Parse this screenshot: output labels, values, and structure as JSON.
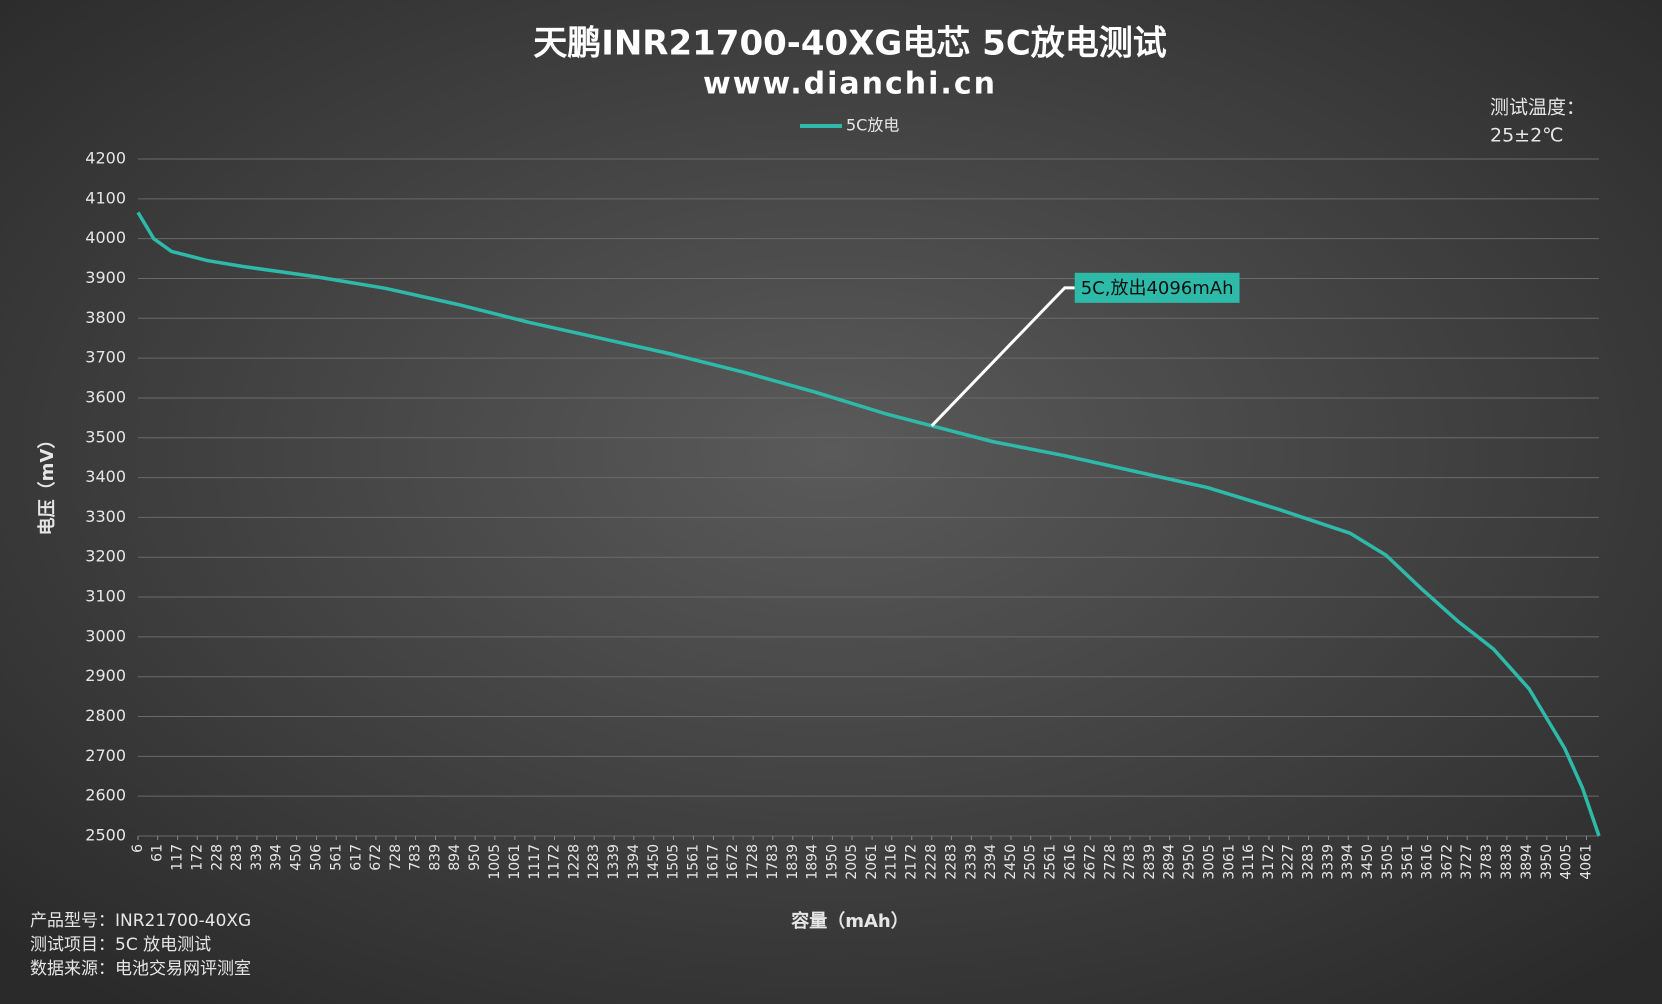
{
  "chart_data": {
    "type": "line",
    "title": "天鹏INR21700-40XG电芯 5C放电测试",
    "subtitle": "www.dianchi.cn",
    "x_label": "容量（mAh）",
    "y_label": "电压（mV）",
    "temperature_note": [
      "测试温度：",
      "25±2℃"
    ],
    "notes": [
      "产品型号：INR21700-40XG",
      "测试项目：5C 放电测试",
      "数据来源：电池交易网评测室"
    ],
    "legend": "top",
    "grid": true,
    "x": [
      6,
      50,
      100,
      200,
      300,
      500,
      700,
      900,
      1100,
      1300,
      1500,
      1700,
      1900,
      2100,
      2228,
      2400,
      2600,
      2800,
      3000,
      3200,
      3400,
      3500,
      3600,
      3700,
      3800,
      3900,
      4000,
      4050,
      4096
    ],
    "series": [
      {
        "name": "5C放电",
        "color": "#2ebaa9",
        "values": [
          4066,
          4000,
          3968,
          3945,
          3930,
          3905,
          3875,
          3835,
          3790,
          3750,
          3710,
          3665,
          3615,
          3560,
          3530,
          3490,
          3455,
          3415,
          3375,
          3320,
          3260,
          3205,
          3120,
          3040,
          2970,
          2870,
          2720,
          2620,
          2500
        ]
      }
    ],
    "annotation": {
      "text": "5C,放出4096mAh",
      "x": 2228,
      "y": 3530
    },
    "xlim": [
      6,
      4096
    ],
    "xticks": [
      6,
      61,
      117,
      172,
      228,
      283,
      339,
      394,
      450,
      506,
      561,
      617,
      672,
      728,
      783,
      839,
      894,
      950,
      1005,
      1061,
      1117,
      1172,
      1228,
      1283,
      1339,
      1394,
      1450,
      1505,
      1561,
      1617,
      1672,
      1728,
      1783,
      1839,
      1894,
      1950,
      2005,
      2061,
      2116,
      2172,
      2228,
      2283,
      2339,
      2394,
      2450,
      2505,
      2561,
      2616,
      2672,
      2728,
      2783,
      2839,
      2894,
      2950,
      3005,
      3061,
      3116,
      3172,
      3227,
      3283,
      3339,
      3394,
      3450,
      3505,
      3561,
      3616,
      3672,
      3727,
      3783,
      3838,
      3894,
      3950,
      4005,
      4061
    ],
    "ylim": [
      2500,
      4200
    ],
    "yticks": [
      2500,
      2600,
      2700,
      2800,
      2900,
      3000,
      3100,
      3200,
      3300,
      3400,
      3500,
      3600,
      3700,
      3800,
      3900,
      4000,
      4100,
      4200
    ]
  }
}
